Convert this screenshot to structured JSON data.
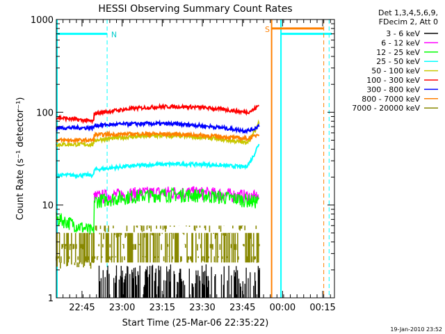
{
  "chart_data": {
    "type": "line",
    "title": "HESSI Observing Summary Count Rates",
    "xlabel": "Start Time (25-Mar-06 22:35:22)",
    "ylabel": "Count Rate (s⁻¹ detector⁻¹)",
    "y_scale": "log",
    "ylim": [
      1,
      1000
    ],
    "xlim_minutes_after_start": [
      0,
      104
    ],
    "x_ticks": [
      "22:45",
      "23:00",
      "23:15",
      "23:30",
      "23:45",
      "00:00",
      "00:15"
    ],
    "x_tick_minutes": [
      9.6,
      24.6,
      39.6,
      54.6,
      69.6,
      84.6,
      99.6
    ],
    "y_ticks": [
      "1",
      "10",
      "100",
      "1000"
    ],
    "y_tick_values": [
      1,
      10,
      100,
      1000
    ],
    "legend_header": [
      "Det 1,3,4,5,6,9,",
      "FDecim 2, Att 0"
    ],
    "legend_placement": "right-outside",
    "series": [
      {
        "name": "3 - 6 keV",
        "color": "#000000",
        "level": 1.6,
        "t_start": 16,
        "t_end": 76,
        "noise": "spiky-low"
      },
      {
        "name": "6 - 12 keV",
        "color": "#ff00ff",
        "level": 12,
        "t_start": 14,
        "t_end": 76
      },
      {
        "name": "12 - 25 keV",
        "color": "#00ff00",
        "level": 11,
        "t_start": 0,
        "t_end": 76
      },
      {
        "name": "25 - 50 keV",
        "color": "#00ffff",
        "level": 24,
        "t_start": 0,
        "t_end": 76
      },
      {
        "name": "50 - 100 keV",
        "color": "#c8c800",
        "level": 55,
        "t_start": 0,
        "t_end": 76
      },
      {
        "name": "100 - 300 keV",
        "color": "#ff0000",
        "level": 100,
        "t_start": 0,
        "t_end": 76
      },
      {
        "name": "300 - 800 keV",
        "color": "#0000ff",
        "level": 68,
        "t_start": 0,
        "t_end": 76
      },
      {
        "name": "800 - 7000 keV",
        "color": "#ff8000",
        "level": 58,
        "t_start": 0,
        "t_end": 76
      },
      {
        "name": "7000 - 20000 keV",
        "color": "#888800",
        "level": 3.5,
        "t_start": 0,
        "t_end": 76
      }
    ],
    "annotations": [
      {
        "text": "N",
        "color": "#00cccc"
      },
      {
        "text": "S",
        "color": "#ff8000"
      }
    ],
    "footer_date": "19-Jan-2010 23:52"
  }
}
